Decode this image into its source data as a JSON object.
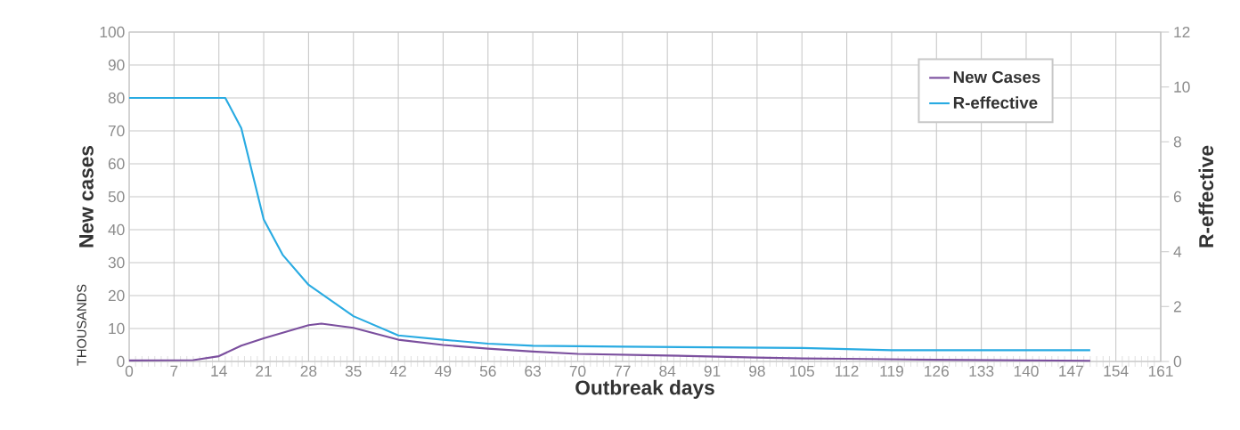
{
  "chart_data": {
    "type": "line",
    "xlabel": "Outbreak days",
    "ylabel": "New cases",
    "y2label": "R-effective",
    "annotations": [
      "THOUSANDS"
    ],
    "xlim": [
      0,
      161
    ],
    "xticks": [
      0,
      7,
      14,
      21,
      28,
      35,
      42,
      49,
      56,
      63,
      70,
      77,
      84,
      91,
      98,
      105,
      112,
      119,
      126,
      133,
      140,
      147,
      154,
      161
    ],
    "ylim": [
      0,
      100
    ],
    "yticks": [
      0,
      10,
      20,
      30,
      40,
      50,
      60,
      70,
      80,
      90,
      100
    ],
    "y2lim": [
      0,
      12
    ],
    "y2ticks": [
      0,
      2,
      4,
      6,
      8,
      10,
      12
    ],
    "grid": true,
    "legend": "top right",
    "line_style": "solid",
    "series": [
      {
        "name": "New Cases",
        "color": "#7b4f9e",
        "x": [
          0,
          10,
          14,
          17.5,
          21,
          28,
          30,
          35,
          42,
          49,
          56,
          63,
          70,
          84,
          98,
          105,
          112,
          126,
          150
        ],
        "values": [
          0.3,
          0.4,
          1.6,
          4.8,
          7,
          11,
          11.5,
          10.2,
          6.6,
          5.0,
          3.9,
          3.0,
          2.3,
          1.8,
          1.2,
          0.9,
          0.8,
          0.5,
          0.2
        ]
      },
      {
        "name": "R-effective",
        "color": "#29abe2",
        "axis": "y2",
        "x": [
          0,
          15,
          17.5,
          21,
          24,
          28,
          35,
          42,
          49,
          56,
          63,
          77,
          105,
          112,
          119,
          150
        ],
        "values": [
          9.6,
          9.6,
          8.5,
          5.17,
          3.87,
          2.79,
          1.65,
          0.95,
          0.79,
          0.65,
          0.57,
          0.54,
          0.49,
          0.45,
          0.41,
          0.41
        ]
      }
    ]
  }
}
